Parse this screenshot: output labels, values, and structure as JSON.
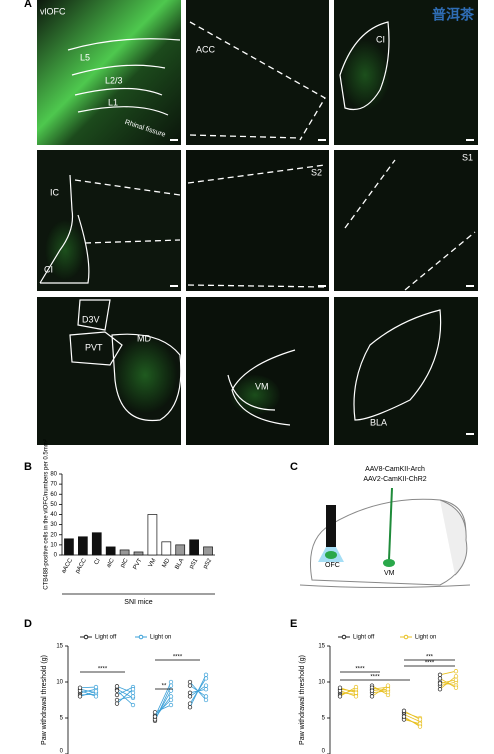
{
  "panel_a": {
    "label": "A",
    "images": [
      {
        "labels": [
          "vlOFC",
          "L5",
          "L2/3",
          "L1",
          "Rhinal fissure"
        ]
      },
      {
        "labels": [
          "ACC"
        ]
      },
      {
        "labels": [
          "CI"
        ]
      },
      {
        "labels": [
          "IC",
          "CI"
        ]
      },
      {
        "labels": [
          "S2"
        ]
      },
      {
        "labels": [
          "S1"
        ]
      },
      {
        "labels": [
          "D3V",
          "PVT",
          "MD"
        ]
      },
      {
        "labels": [
          "VM"
        ]
      },
      {
        "labels": [
          "BLA"
        ]
      }
    ]
  },
  "watermark": "普洱茶",
  "panel_c": {
    "label": "C",
    "viruses": [
      "AAV8-CamKII-Arch",
      "AAV2-CamKII-ChR2"
    ],
    "regions": [
      "OFC",
      "VM"
    ]
  },
  "chart_data": [
    {
      "type": "bar",
      "panel_label": "B",
      "y_label": "CTB488-positive cells in the vlOFC/numbers per 0.5mm²",
      "x_label": "SNI mice",
      "categories": [
        "aACC",
        "pACC",
        "CI",
        "aIC",
        "pIC",
        "PVT",
        "VM",
        "MD",
        "BLA",
        "pS1",
        "pS2"
      ],
      "values": [
        16,
        18,
        22,
        8,
        5,
        3,
        40,
        13,
        10,
        15,
        8
      ],
      "colors": [
        "#111",
        "#111",
        "#111",
        "#111",
        "#999",
        "#999",
        "#fff",
        "#fff",
        "#999",
        "#111",
        "#999"
      ],
      "ylim": [
        0,
        80
      ],
      "yticks": [
        0,
        10,
        20,
        30,
        40,
        50,
        60,
        70,
        80
      ]
    },
    {
      "type": "paired",
      "panel_label": "D",
      "y_label": "Paw withdrawal threshold (g)",
      "ylim": [
        0,
        15
      ],
      "yticks": [
        0,
        5,
        10,
        15
      ],
      "annotations": [
        "****",
        "**",
        "****"
      ],
      "series": [
        {
          "name": "Light off",
          "color": "#222",
          "values": [
            [
              9,
              8.5,
              8.2,
              8.8,
              9.2,
              8
            ],
            [
              9,
              8.2,
              7.5,
              8.8,
              7,
              9.4
            ],
            [
              5,
              4.6,
              5.4,
              5.8,
              4.8,
              5.2
            ],
            [
              7,
              8.5,
              9.5,
              6.5,
              10,
              8
            ]
          ]
        },
        {
          "name": "Light on",
          "color": "#3aa0d8",
          "values": [
            [
              8.5,
              9,
              8.3,
              8,
              9.3,
              8.7
            ],
            [
              7.8,
              9.3,
              8,
              6.8,
              9,
              8.5
            ],
            [
              8,
              9.5,
              7.5,
              6.8,
              8.8,
              10
            ],
            [
              10.5,
              9,
              8,
              11,
              7.5,
              9.5
            ]
          ]
        }
      ]
    },
    {
      "type": "paired",
      "panel_label": "E",
      "y_label": "Paw withdrawal threshold (g)",
      "ylim": [
        0,
        15
      ],
      "yticks": [
        0,
        5,
        10,
        15
      ],
      "annotations": [
        "****",
        "****",
        "***",
        "****"
      ],
      "series": [
        {
          "name": "Light off",
          "color": "#222",
          "values": [
            [
              8.5,
              9,
              8.2,
              8.8,
              9.2,
              8
            ],
            [
              9,
              8.5,
              9.5,
              8,
              9.2,
              8.8
            ],
            [
              5.5,
              5,
              5.8,
              4.8,
              5.2,
              6
            ],
            [
              9.5,
              10,
              9,
              10.5,
              11,
              9.8
            ]
          ]
        },
        {
          "name": "Light on",
          "color": "#e8c020",
          "values": [
            [
              8.3,
              8.7,
              9,
              8,
              8.5,
              9.3
            ],
            [
              9.3,
              8.8,
              8.2,
              9.5,
              8.6,
              9
            ],
            [
              4.5,
              4,
              5,
              4.2,
              3.8,
              4.8
            ],
            [
              10,
              9.5,
              10.8,
              9.2,
              11.5,
              10.3
            ]
          ]
        }
      ]
    }
  ]
}
